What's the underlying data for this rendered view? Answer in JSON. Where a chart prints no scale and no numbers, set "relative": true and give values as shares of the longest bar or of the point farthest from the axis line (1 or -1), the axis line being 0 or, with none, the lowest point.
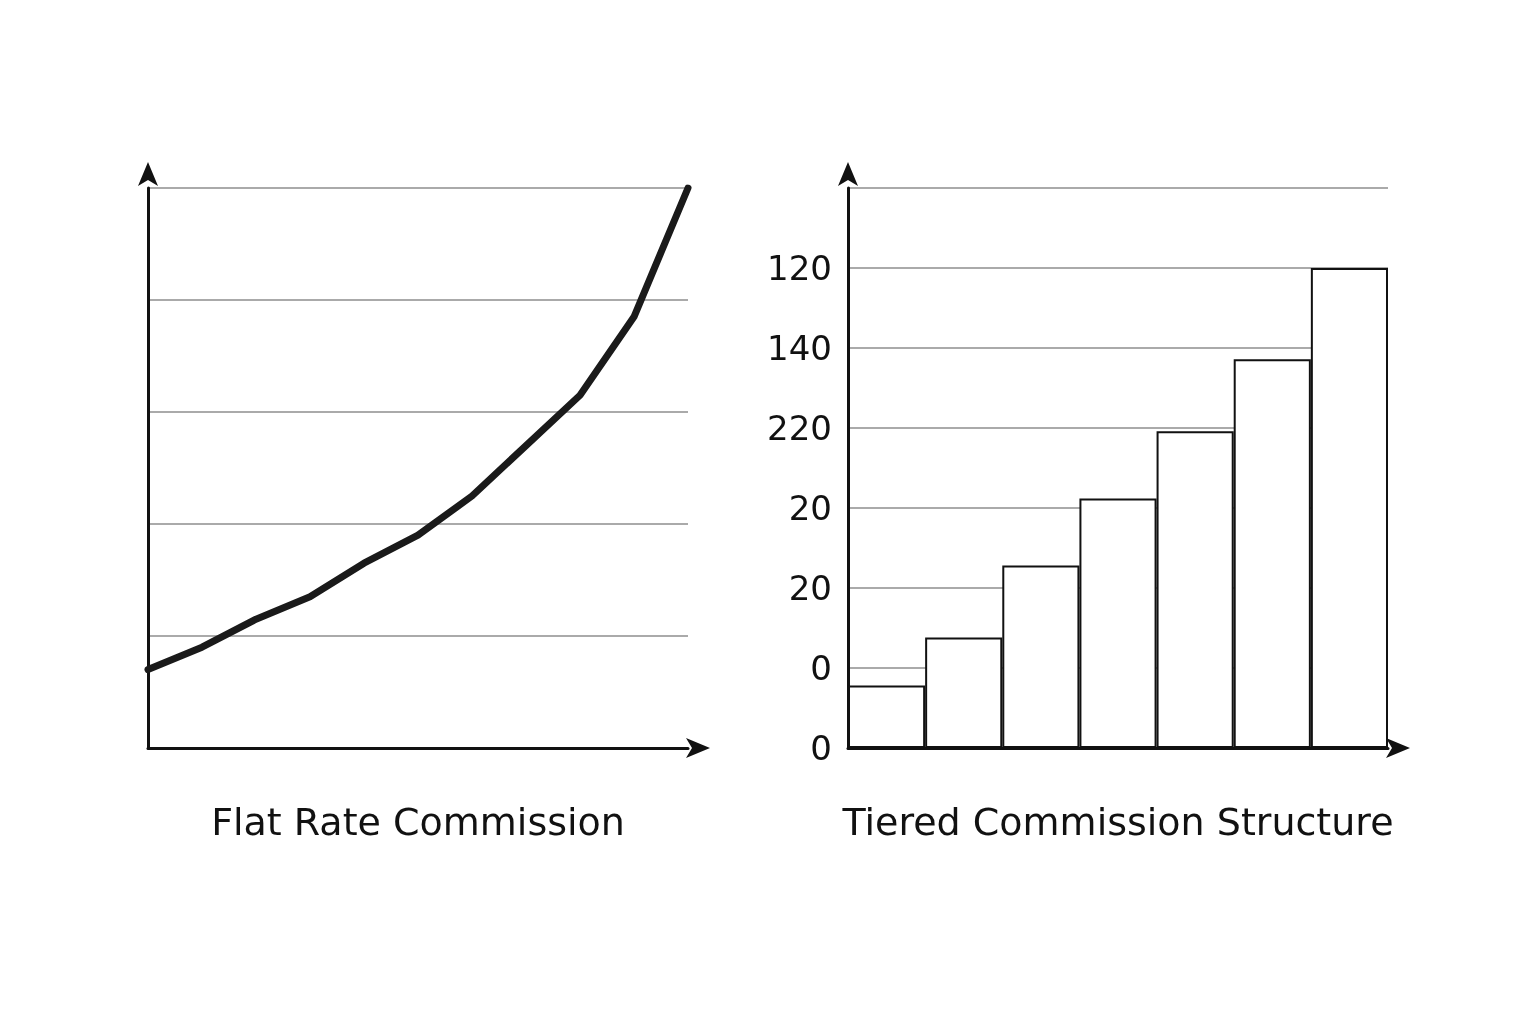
{
  "chart_data": [
    {
      "type": "line",
      "xlabel": "Flat Rate Commission",
      "relative": true,
      "categories": [
        null,
        null,
        null,
        null,
        null,
        null,
        null,
        null,
        null,
        null,
        null
      ],
      "series": [
        {
          "color": "#1a1a1a",
          "values": [
            0.14,
            0.18,
            0.23,
            0.27,
            0.33,
            0.38,
            0.45,
            0.54,
            0.63,
            0.77,
            1
          ]
        }
      ],
      "grid": "y",
      "marker": "none",
      "line_style": "solid",
      "tick_labels": false
    },
    {
      "type": "bar",
      "xlabel": "Tiered Commission Structure",
      "categories": [
        null,
        null,
        null,
        null,
        null,
        null,
        null
      ],
      "series": [
        {
          "color": "#ffffff",
          "values": [
            0.13,
            0.23,
            0.38,
            0.52,
            0.66,
            0.81,
            1
          ]
        }
      ],
      "relative": true,
      "annotations": [
        "0",
        "0",
        "20",
        "20",
        "220",
        "140",
        "120"
      ],
      "grid": "y",
      "tick_labels": "y"
    }
  ]
}
